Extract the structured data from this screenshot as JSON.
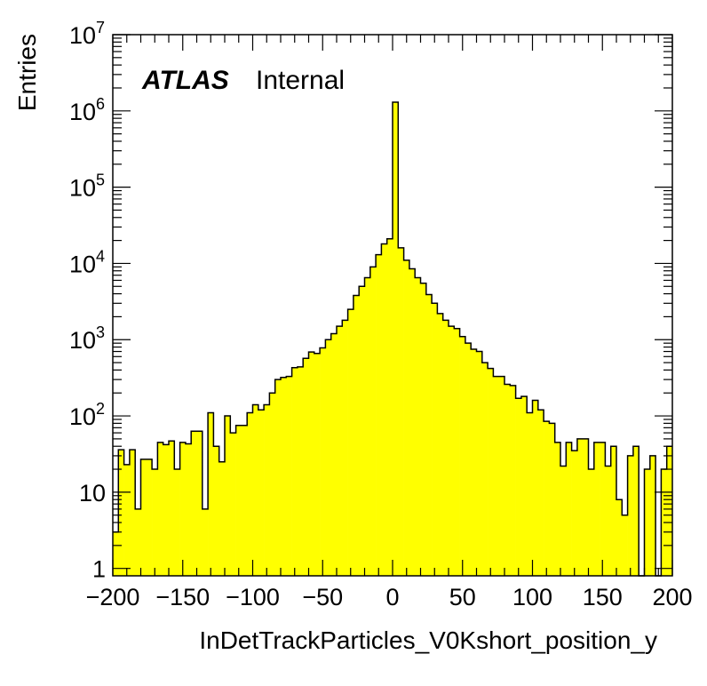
{
  "chart_data": {
    "type": "histogram",
    "xlabel": "InDetTrackParticles_V0Kshort_position_y",
    "ylabel": "Entries",
    "xlim": [
      -200,
      200
    ],
    "ylim": [
      0.8,
      10000000
    ],
    "yscale": "log",
    "grid": false,
    "fill_color": "#ffff00",
    "line_color": "#000000",
    "labels": {
      "experiment": "ATLAS",
      "status": "Internal"
    },
    "x_ticks": [
      {
        "value": -200,
        "label": "−200"
      },
      {
        "value": -150,
        "label": "−150"
      },
      {
        "value": -100,
        "label": "−100"
      },
      {
        "value": -50,
        "label": "−50"
      },
      {
        "value": 0,
        "label": "0"
      },
      {
        "value": 50,
        "label": "50"
      },
      {
        "value": 100,
        "label": "100"
      },
      {
        "value": 150,
        "label": "150"
      },
      {
        "value": 200,
        "label": "200"
      }
    ],
    "y_ticks": [
      {
        "value": 1,
        "base": "1",
        "exp": ""
      },
      {
        "value": 10,
        "base": "10",
        "exp": ""
      },
      {
        "value": 100,
        "base": "10",
        "exp": "2"
      },
      {
        "value": 1000,
        "base": "10",
        "exp": "3"
      },
      {
        "value": 10000,
        "base": "10",
        "exp": "4"
      },
      {
        "value": 100000,
        "base": "10",
        "exp": "5"
      },
      {
        "value": 1000000,
        "base": "10",
        "exp": "6"
      },
      {
        "value": 10000000,
        "base": "10",
        "exp": "7"
      }
    ],
    "bin_width": 4,
    "bin_low_edges": [
      -200,
      -196,
      -192,
      -188,
      -184,
      -180,
      -176,
      -172,
      -168,
      -164,
      -160,
      -156,
      -152,
      -148,
      -144,
      -140,
      -136,
      -132,
      -128,
      -124,
      -120,
      -116,
      -112,
      -108,
      -104,
      -100,
      -96,
      -92,
      -88,
      -84,
      -80,
      -76,
      -72,
      -68,
      -64,
      -60,
      -56,
      -52,
      -48,
      -44,
      -40,
      -36,
      -32,
      -28,
      -24,
      -20,
      -16,
      -12,
      -8,
      -4,
      0,
      4,
      8,
      12,
      16,
      20,
      24,
      28,
      32,
      36,
      40,
      44,
      48,
      52,
      56,
      60,
      64,
      68,
      72,
      76,
      80,
      84,
      88,
      92,
      96,
      100,
      104,
      108,
      112,
      116,
      120,
      124,
      128,
      132,
      136,
      140,
      144,
      148,
      152,
      156,
      160,
      164,
      168,
      172,
      176,
      180,
      184,
      188,
      192,
      196
    ],
    "values": [
      3,
      36,
      23,
      36,
      6,
      27,
      27,
      20,
      45,
      42,
      47,
      20,
      45,
      43,
      63,
      63,
      6,
      110,
      40,
      25,
      100,
      60,
      75,
      75,
      110,
      140,
      120,
      140,
      200,
      300,
      320,
      330,
      430,
      440,
      570,
      690,
      660,
      780,
      1000,
      1200,
      1500,
      1800,
      2500,
      3800,
      5000,
      6500,
      9000,
      13000,
      18000,
      21000,
      1300000,
      16000,
      11000,
      8500,
      6500,
      5500,
      3900,
      3000,
      2200,
      1800,
      1500,
      1400,
      1100,
      900,
      750,
      700,
      500,
      420,
      330,
      330,
      260,
      250,
      170,
      180,
      110,
      160,
      120,
      85,
      80,
      45,
      22,
      45,
      35,
      50,
      50,
      20,
      45,
      45,
      22,
      40,
      8,
      5,
      30,
      40,
      0,
      20,
      30,
      0,
      20,
      40
    ]
  }
}
